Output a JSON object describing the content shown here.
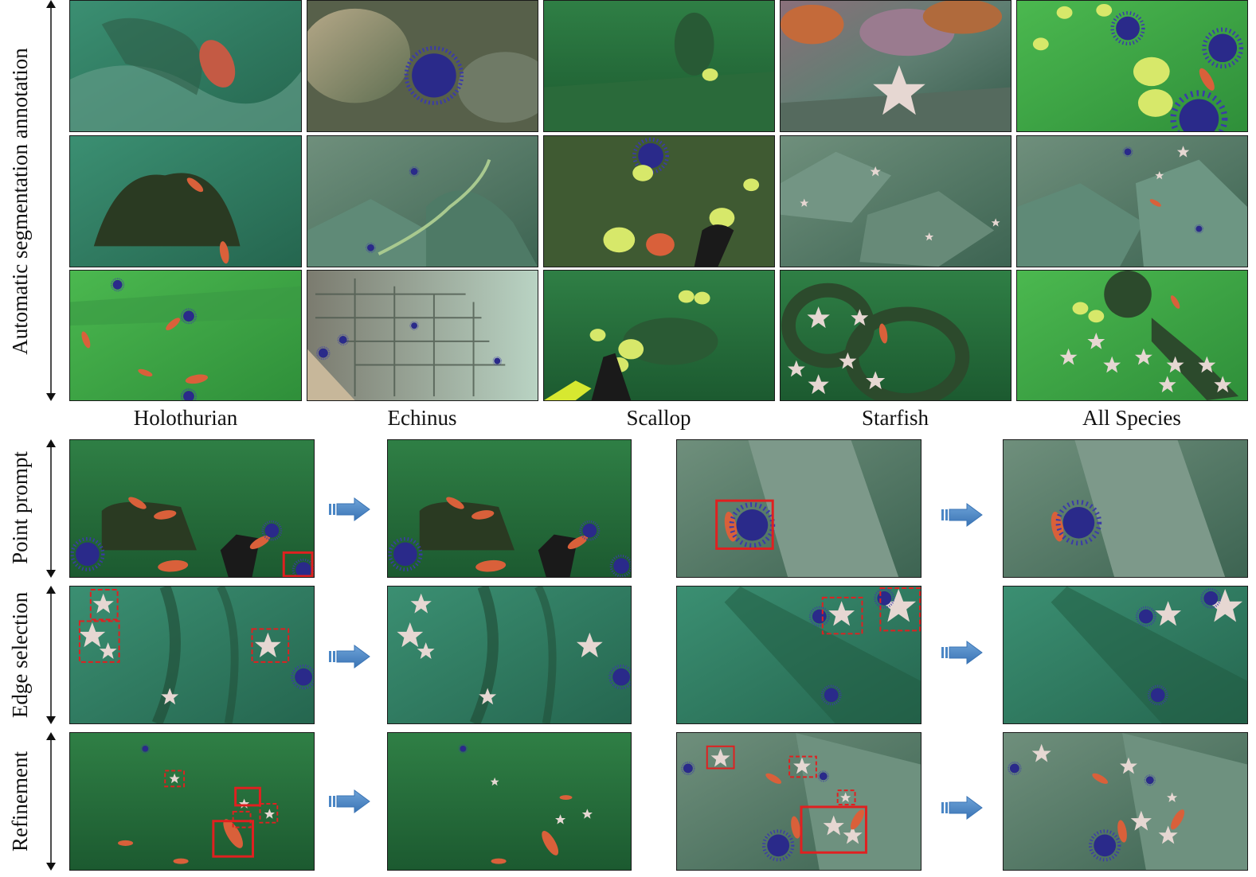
{
  "side_labels": {
    "top": "Automatic segmentation annotation",
    "point_prompt": "Point prompt",
    "edge_selection": "Edge selection",
    "refinement": "Refinement"
  },
  "columns": [
    "Holothurian",
    "Echinus",
    "Scallop",
    "Starfish",
    "All Species"
  ],
  "colors": {
    "water_deep": "#1f6b3a",
    "water_light": "#3fa85a",
    "holothurian": "#d9603a",
    "echinus": "#2a2a8a",
    "scallop": "#d7e86a",
    "starfish": "#e6d7d2",
    "box_red": "#e02020",
    "arrow_blue": "#4a86c5"
  }
}
